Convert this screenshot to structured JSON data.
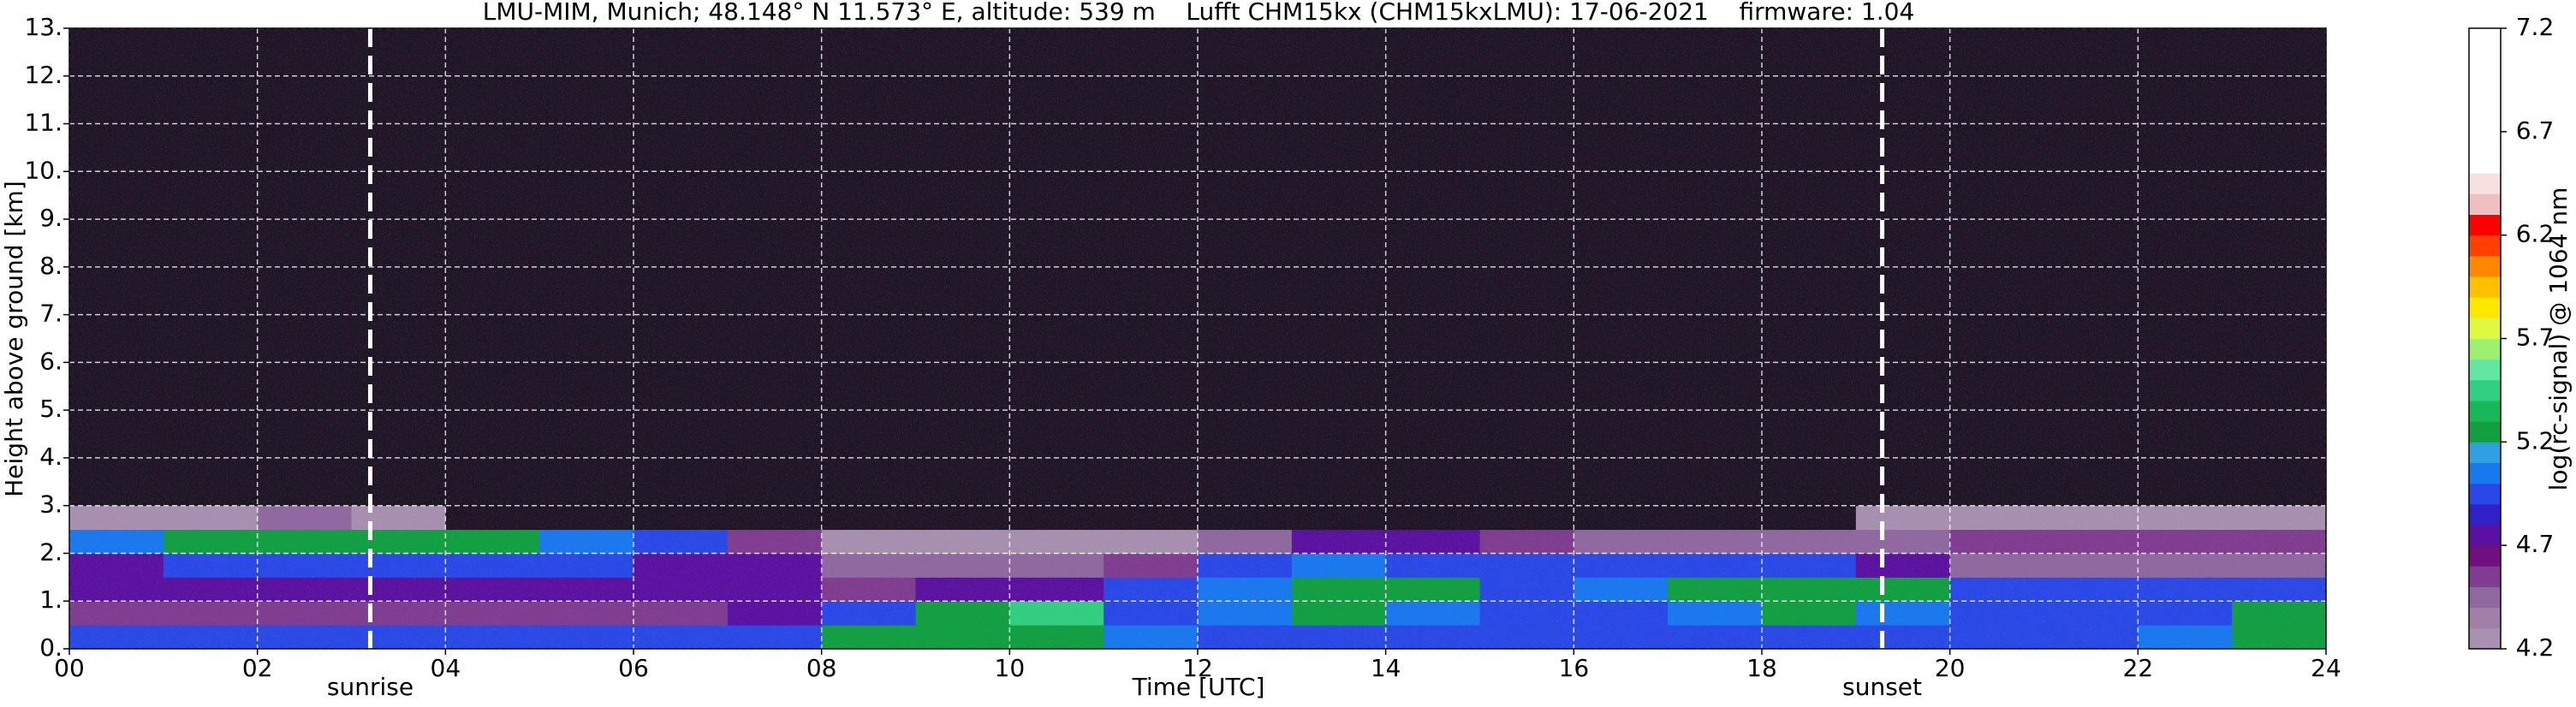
{
  "chart_data": {
    "type": "heatmap",
    "title": "LMU-MIM, Munich; 48.148° N 11.573° E, altitude: 539 m    Lufft CHM15kx (CHM15kxLMU): 17-06-2021    firmware: 1.04",
    "x_label": "Time [UTC]",
    "y_label": "Height above ground [km]",
    "colorbar_label": "log(rc-signal) @ 1064 nm",
    "xlim": [
      0,
      24
    ],
    "ylim": [
      0,
      13
    ],
    "xticks": [
      {
        "value": 0,
        "label": "00"
      },
      {
        "value": 2,
        "label": "02"
      },
      {
        "value": 4,
        "label": "04"
      },
      {
        "value": 6,
        "label": "06"
      },
      {
        "value": 8,
        "label": "08"
      },
      {
        "value": 10,
        "label": "10"
      },
      {
        "value": 12,
        "label": "12"
      },
      {
        "value": 14,
        "label": "14"
      },
      {
        "value": 16,
        "label": "16"
      },
      {
        "value": 18,
        "label": "18"
      },
      {
        "value": 20,
        "label": "20"
      },
      {
        "value": 22,
        "label": "22"
      },
      {
        "value": 24,
        "label": "24"
      }
    ],
    "yticks": [
      {
        "value": 0,
        "label": "0."
      },
      {
        "value": 1,
        "label": "1."
      },
      {
        "value": 2,
        "label": "2."
      },
      {
        "value": 3,
        "label": "3."
      },
      {
        "value": 4,
        "label": "4."
      },
      {
        "value": 5,
        "label": "5."
      },
      {
        "value": 6,
        "label": "6."
      },
      {
        "value": 7,
        "label": "7."
      },
      {
        "value": 8,
        "label": "8."
      },
      {
        "value": 9,
        "label": "9."
      },
      {
        "value": 10,
        "label": "10."
      },
      {
        "value": 11,
        "label": "11."
      },
      {
        "value": 12,
        "label": "12."
      },
      {
        "value": 13,
        "label": "13."
      }
    ],
    "grid": true,
    "x_edges": [
      0,
      1,
      2,
      3,
      4,
      5,
      6,
      7,
      8,
      9,
      10,
      11,
      12,
      13,
      14,
      15,
      16,
      17,
      18,
      19,
      20,
      21,
      22,
      23,
      24
    ],
    "y_edges": [
      0,
      0.5,
      1,
      1.5,
      2,
      2.5,
      3,
      13
    ],
    "z": [
      [
        4.9,
        4.9,
        4.9,
        4.9,
        4.9,
        4.9,
        4.9,
        5.0,
        5.2,
        5.3,
        5.3,
        5.1,
        5.0,
        5.0,
        5.0,
        5.0,
        5.0,
        5.0,
        5.0,
        5.0,
        5.0,
        5.0,
        5.1,
        5.2
      ],
      [
        4.6,
        4.6,
        4.6,
        4.6,
        4.6,
        4.6,
        4.6,
        4.7,
        4.9,
        5.3,
        5.4,
        5.0,
        5.1,
        5.2,
        5.1,
        5.0,
        5.0,
        5.1,
        5.2,
        5.1,
        4.9,
        4.9,
        5.0,
        5.3
      ],
      [
        4.7,
        4.7,
        4.7,
        4.8,
        4.8,
        4.8,
        4.7,
        4.7,
        4.6,
        4.7,
        4.8,
        4.9,
        5.1,
        5.3,
        5.2,
        5.0,
        5.1,
        5.2,
        5.3,
        5.2,
        4.9,
        4.9,
        5.0,
        5.0
      ],
      [
        4.8,
        4.9,
        4.9,
        4.9,
        4.9,
        4.9,
        4.8,
        4.7,
        4.5,
        4.4,
        4.4,
        4.6,
        5.0,
        5.1,
        5.0,
        5.0,
        4.9,
        4.9,
        4.9,
        4.8,
        4.4,
        4.4,
        4.4,
        4.4
      ],
      [
        5.1,
        5.2,
        5.3,
        5.2,
        5.2,
        5.1,
        5.0,
        4.6,
        4.3,
        4.2,
        4.2,
        4.3,
        4.5,
        4.7,
        4.7,
        4.6,
        4.5,
        4.5,
        4.5,
        4.4,
        4.6,
        4.6,
        4.6,
        4.6
      ],
      [
        4.3,
        4.3,
        4.4,
        4.2,
        4.1,
        4.1,
        4.0,
        4.0,
        4.0,
        4.0,
        4.0,
        4.0,
        4.0,
        4.0,
        4.0,
        4.0,
        4.0,
        4.0,
        4.0,
        4.2,
        4.3,
        4.3,
        4.3,
        4.3
      ],
      [
        3.8,
        3.8,
        3.8,
        3.8,
        3.8,
        3.8,
        3.8,
        3.8,
        3.8,
        3.8,
        3.8,
        3.8,
        3.8,
        3.8,
        3.8,
        3.8,
        3.8,
        3.8,
        3.8,
        3.8,
        3.8,
        3.8,
        3.8,
        3.8
      ]
    ],
    "clim": [
      4.2,
      7.2
    ],
    "cticks": [
      4.2,
      4.7,
      5.2,
      5.7,
      6.2,
      6.7,
      7.2
    ],
    "colors": [
      "#a890b0",
      "#a080a8",
      "#9068a0",
      "#803c90",
      "#701080",
      "#5a10a0",
      "#3020c8",
      "#2848e8",
      "#1878f0",
      "#30a0e0",
      "#10a040",
      "#18b858",
      "#30d080",
      "#60e8a0",
      "#a0f070",
      "#e0f840",
      "#ffe800",
      "#ffc000",
      "#ff8800",
      "#ff4000",
      "#ff0000",
      "#f0c0c0",
      "#f8e0e0",
      "#ffffff",
      "#ffffff",
      "#ffffff",
      "#ffffff",
      "#ffffff",
      "#ffffff",
      "#ffffff"
    ],
    "under_color": "#1e1424",
    "vlines": [
      {
        "x": 3.2,
        "label": "sunrise"
      },
      {
        "x": 19.28,
        "label": "sunset"
      }
    ]
  }
}
